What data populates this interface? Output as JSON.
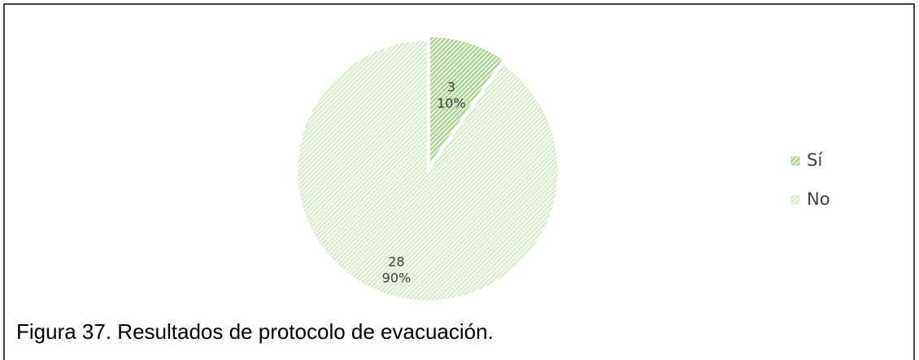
{
  "chart_data": {
    "type": "pie",
    "categories": [
      "Sí",
      "No"
    ],
    "values": [
      3,
      28
    ],
    "percentages": [
      {
        "value": 10,
        "label": "10%"
      },
      {
        "value": 90,
        "label": "90%"
      }
    ],
    "colors": [
      "#a9d18e",
      "#d5e8c8"
    ],
    "legend": "right",
    "caption": "Figura 37. Resultados de protocolo de evacuación."
  }
}
